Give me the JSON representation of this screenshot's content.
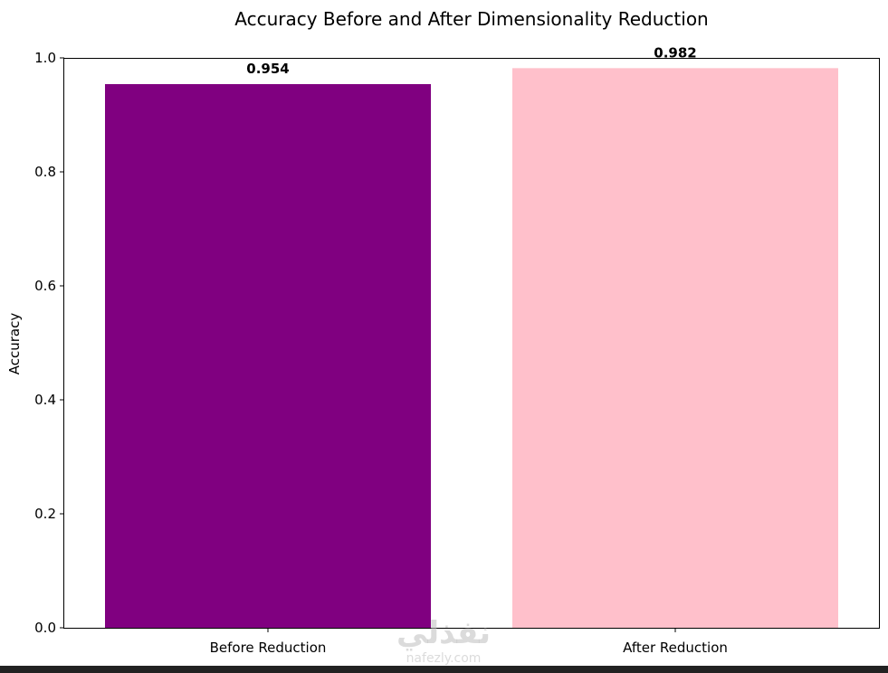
{
  "chart_data": {
    "type": "bar",
    "title": "Accuracy Before and After Dimensionality Reduction",
    "xlabel": "",
    "ylabel": "Accuracy",
    "categories": [
      "Before Reduction",
      "After Reduction"
    ],
    "values": [
      0.954,
      0.982
    ],
    "value_labels": [
      "0.954",
      "0.982"
    ],
    "colors": [
      "#800080",
      "#FFC0CB"
    ],
    "ylim": [
      0,
      1.0
    ],
    "yticks": [
      0.0,
      0.2,
      0.4,
      0.6,
      0.8,
      1.0
    ],
    "ytick_labels": [
      "0.0",
      "0.2",
      "0.4",
      "0.6",
      "0.8",
      "1.0"
    ],
    "grid": false
  },
  "watermark": {
    "arabic": "نفذلي",
    "latin": "nafezly.com"
  }
}
